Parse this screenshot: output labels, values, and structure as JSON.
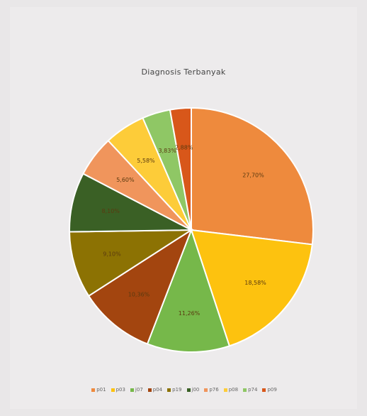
{
  "chart_data": {
    "type": "pie",
    "title": "Diagnosis Terbanyak",
    "categories": [
      "p01",
      "p03",
      "j07",
      "p04",
      "p19",
      "j00",
      "p76",
      "p08",
      "p74",
      "p09"
    ],
    "values": [
      27.7,
      18.58,
      11.26,
      10.36,
      9.1,
      8.1,
      5.6,
      5.58,
      3.83,
      2.88
    ],
    "data_labels": [
      "27,70%",
      "18,58%",
      "11,26%",
      "10,36%",
      "9,10%",
      "8,10%",
      "5,60%",
      "5,58%",
      "3,83%",
      "2,88%"
    ],
    "colors": [
      "#ee8a3d",
      "#fdc20f",
      "#76b84a",
      "#a3450f",
      "#8c7203",
      "#3a6025",
      "#f0955c",
      "#fdcc39",
      "#8fc765",
      "#d8571a"
    ],
    "legend_position": "bottom"
  }
}
